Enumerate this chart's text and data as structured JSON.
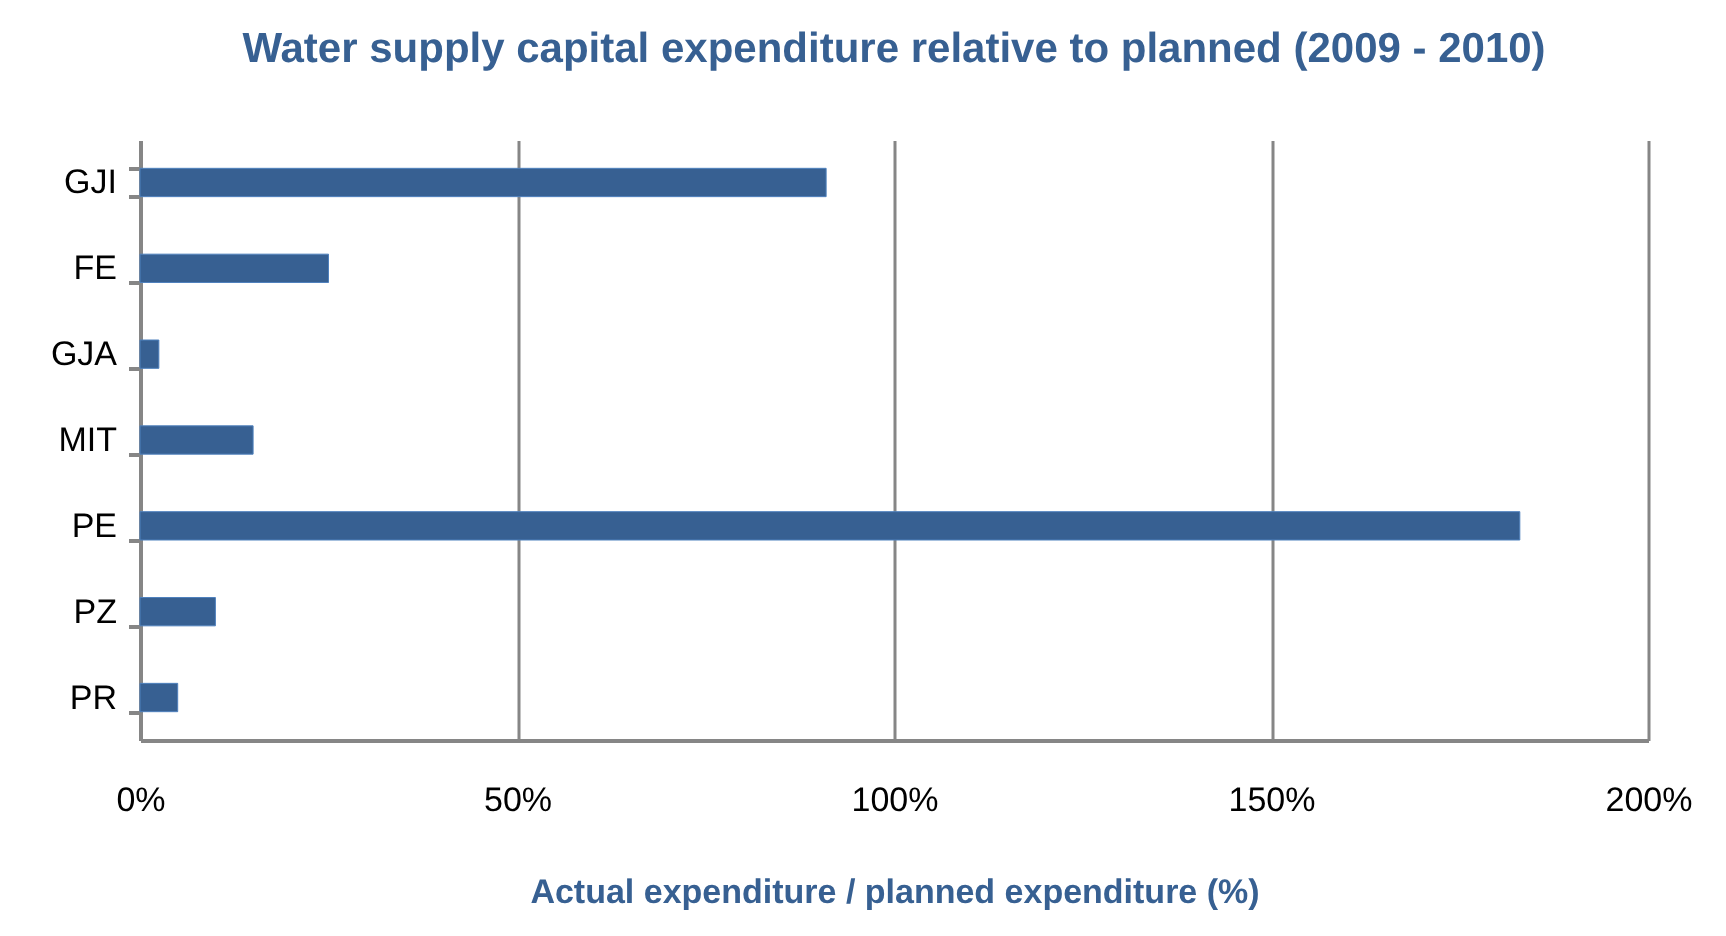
{
  "chart_data": {
    "type": "bar",
    "orientation": "horizontal",
    "title": "Water supply capital expenditure relative to planned (2009 - 2010)",
    "xlabel": "Actual expenditure / planned expenditure (%)",
    "categories": [
      "GJI",
      "FE",
      "GJA",
      "MIT",
      "PE",
      "PZ",
      "PR"
    ],
    "values": [
      91,
      25,
      2.5,
      15,
      183,
      10,
      5
    ],
    "color": "#376092",
    "xlim": [
      0,
      200
    ],
    "xticks": [
      {
        "value": 0,
        "label": "0%"
      },
      {
        "value": 50,
        "label": "50%"
      },
      {
        "value": 100,
        "label": "100%"
      },
      {
        "value": 150,
        "label": "150%"
      },
      {
        "value": 200,
        "label": "200%"
      }
    ],
    "grid": "x"
  }
}
